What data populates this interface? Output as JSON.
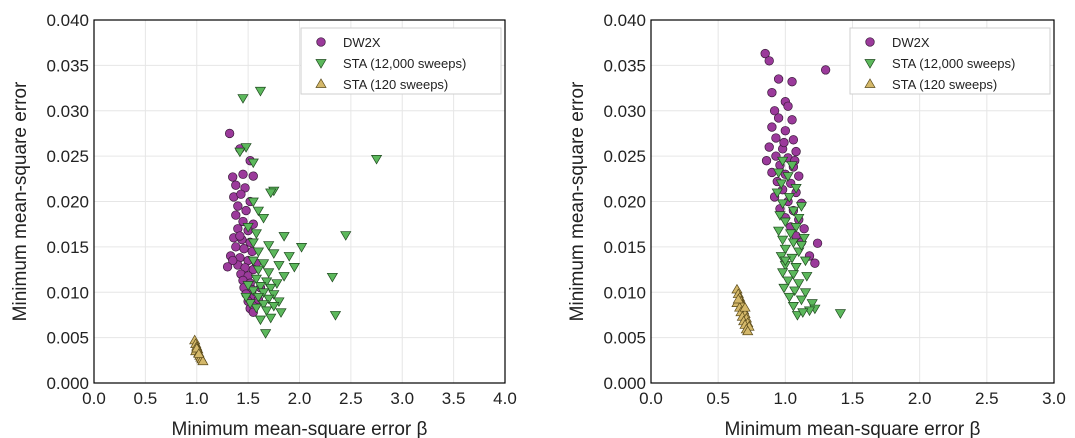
{
  "colors": {
    "dw2x": "#9b3a9b",
    "sta12000": "#5cb85c",
    "sta120": "#d4b86a"
  },
  "chart_data": [
    {
      "type": "scatter",
      "xlabel": "Minimum mean-square error β",
      "ylabel": "Minimum mean-square error",
      "xlim": [
        0,
        4
      ],
      "ylim": [
        0,
        0.04
      ],
      "xticks": [
        "0.0",
        "0.5",
        "1.0",
        "1.5",
        "2.0",
        "2.5",
        "3.0",
        "3.5",
        "4.0"
      ],
      "yticks": [
        "0.000",
        "0.005",
        "0.010",
        "0.015",
        "0.020",
        "0.025",
        "0.030",
        "0.035",
        "0.040"
      ],
      "grid": true,
      "legend_position": "top-right",
      "series": [
        {
          "name": "DW2X",
          "marker": "circle",
          "points": [
            [
              1.32,
              0.0275
            ],
            [
              1.42,
              0.0258
            ],
            [
              1.52,
              0.0245
            ],
            [
              1.35,
              0.0227
            ],
            [
              1.45,
              0.023
            ],
            [
              1.55,
              0.0228
            ],
            [
              1.38,
              0.0218
            ],
            [
              1.47,
              0.0215
            ],
            [
              1.36,
              0.0205
            ],
            [
              1.43,
              0.0208
            ],
            [
              1.52,
              0.02
            ],
            [
              1.4,
              0.0195
            ],
            [
              1.48,
              0.019
            ],
            [
              1.38,
              0.0185
            ],
            [
              1.45,
              0.0178
            ],
            [
              1.55,
              0.0175
            ],
            [
              1.4,
              0.017
            ],
            [
              1.5,
              0.0168
            ],
            [
              1.36,
              0.016
            ],
            [
              1.44,
              0.0158
            ],
            [
              1.52,
              0.0155
            ],
            [
              1.38,
              0.015
            ],
            [
              1.46,
              0.0148
            ],
            [
              1.54,
              0.0145
            ],
            [
              1.33,
              0.014
            ],
            [
              1.42,
              0.0138
            ],
            [
              1.5,
              0.0135
            ],
            [
              1.58,
              0.0132
            ],
            [
              1.4,
              0.013
            ],
            [
              1.47,
              0.0127
            ],
            [
              1.55,
              0.0125
            ],
            [
              1.43,
              0.012
            ],
            [
              1.5,
              0.0118
            ],
            [
              1.45,
              0.0113
            ],
            [
              1.52,
              0.011
            ],
            [
              1.46,
              0.0105
            ],
            [
              1.54,
              0.0103
            ],
            [
              1.48,
              0.0098
            ],
            [
              1.56,
              0.0095
            ],
            [
              1.5,
              0.009
            ],
            [
              1.58,
              0.0087
            ],
            [
              1.52,
              0.0082
            ],
            [
              1.55,
              0.0078
            ],
            [
              1.6,
              0.0092
            ],
            [
              1.62,
              0.0105
            ],
            [
              1.35,
              0.0135
            ],
            [
              1.3,
              0.0128
            ],
            [
              1.42,
              0.0162
            ]
          ]
        },
        {
          "name": "STA (12,000 sweeps)",
          "marker": "triangle-down",
          "points": [
            [
              1.62,
              0.0322
            ],
            [
              1.45,
              0.0314
            ],
            [
              1.48,
              0.026
            ],
            [
              1.42,
              0.0255
            ],
            [
              1.55,
              0.0243
            ],
            [
              2.75,
              0.0247
            ],
            [
              1.75,
              0.0212
            ],
            [
              1.72,
              0.021
            ],
            [
              1.55,
              0.02
            ],
            [
              1.6,
              0.019
            ],
            [
              1.65,
              0.0182
            ],
            [
              1.5,
              0.0172
            ],
            [
              1.58,
              0.0165
            ],
            [
              1.85,
              0.0162
            ],
            [
              2.45,
              0.0163
            ],
            [
              1.55,
              0.0155
            ],
            [
              1.7,
              0.0152
            ],
            [
              2.02,
              0.015
            ],
            [
              1.6,
              0.0145
            ],
            [
              1.75,
              0.0143
            ],
            [
              1.9,
              0.014
            ],
            [
              1.55,
              0.0135
            ],
            [
              1.65,
              0.0132
            ],
            [
              1.8,
              0.013
            ],
            [
              1.95,
              0.0128
            ],
            [
              1.6,
              0.0125
            ],
            [
              1.7,
              0.0122
            ],
            [
              1.85,
              0.0118
            ],
            [
              2.32,
              0.0117
            ],
            [
              1.58,
              0.0115
            ],
            [
              1.68,
              0.0112
            ],
            [
              1.78,
              0.011
            ],
            [
              1.62,
              0.0107
            ],
            [
              1.72,
              0.0105
            ],
            [
              1.55,
              0.0102
            ],
            [
              1.65,
              0.01
            ],
            [
              1.75,
              0.0098
            ],
            [
              1.6,
              0.0095
            ],
            [
              1.7,
              0.0093
            ],
            [
              1.8,
              0.009
            ],
            [
              1.65,
              0.0087
            ],
            [
              1.75,
              0.0085
            ],
            [
              1.58,
              0.0083
            ],
            [
              1.68,
              0.008
            ],
            [
              1.82,
              0.0078
            ],
            [
              2.35,
              0.0075
            ],
            [
              1.72,
              0.0072
            ],
            [
              1.62,
              0.007
            ],
            [
              1.67,
              0.0055
            ],
            [
              1.52,
              0.0088
            ],
            [
              1.48,
              0.0095
            ],
            [
              1.5,
              0.0108
            ]
          ]
        },
        {
          "name": "STA (120 sweeps)",
          "marker": "triangle-up",
          "points": [
            [
              0.98,
              0.0047
            ],
            [
              0.99,
              0.0043
            ],
            [
              1.0,
              0.004
            ],
            [
              1.01,
              0.0037
            ],
            [
              0.99,
              0.0035
            ],
            [
              1.02,
              0.0033
            ],
            [
              1.03,
              0.003
            ],
            [
              1.04,
              0.0028
            ],
            [
              1.05,
              0.0026
            ],
            [
              1.06,
              0.0024
            ],
            [
              1.0,
              0.0038
            ],
            [
              1.02,
              0.0032
            ]
          ]
        }
      ]
    },
    {
      "type": "scatter",
      "xlabel": "Minimum mean-square error β",
      "ylabel": "Minimum mean-square error",
      "xlim": [
        0,
        3
      ],
      "ylim": [
        0,
        0.04
      ],
      "xticks": [
        "0.0",
        "0.5",
        "1.0",
        "1.5",
        "2.0",
        "2.5",
        "3.0"
      ],
      "yticks": [
        "0.000",
        "0.005",
        "0.010",
        "0.015",
        "0.020",
        "0.025",
        "0.030",
        "0.035",
        "0.040"
      ],
      "grid": true,
      "legend_position": "top-right",
      "series": [
        {
          "name": "DW2X",
          "marker": "circle",
          "points": [
            [
              0.85,
              0.0363
            ],
            [
              0.88,
              0.0355
            ],
            [
              1.3,
              0.0345
            ],
            [
              0.95,
              0.0335
            ],
            [
              1.05,
              0.0332
            ],
            [
              0.9,
              0.032
            ],
            [
              1.0,
              0.031
            ],
            [
              0.92,
              0.03
            ],
            [
              1.02,
              0.0305
            ],
            [
              0.95,
              0.0292
            ],
            [
              1.05,
              0.029
            ],
            [
              0.9,
              0.0282
            ],
            [
              1.0,
              0.0278
            ],
            [
              0.93,
              0.027
            ],
            [
              1.06,
              0.0268
            ],
            [
              0.88,
              0.026
            ],
            [
              0.98,
              0.0258
            ],
            [
              1.08,
              0.0255
            ],
            [
              0.93,
              0.025
            ],
            [
              1.02,
              0.0248
            ],
            [
              0.86,
              0.0245
            ],
            [
              0.96,
              0.024
            ],
            [
              1.06,
              0.0238
            ],
            [
              0.9,
              0.0232
            ],
            [
              1.0,
              0.023
            ],
            [
              1.1,
              0.0228
            ],
            [
              0.94,
              0.0222
            ],
            [
              1.04,
              0.022
            ],
            [
              0.98,
              0.0213
            ],
            [
              1.08,
              0.021
            ],
            [
              0.92,
              0.0205
            ],
            [
              1.02,
              0.02
            ],
            [
              1.12,
              0.0198
            ],
            [
              0.96,
              0.0192
            ],
            [
              1.06,
              0.019
            ],
            [
              1.0,
              0.0182
            ],
            [
              1.1,
              0.018
            ],
            [
              1.04,
              0.0172
            ],
            [
              1.14,
              0.017
            ],
            [
              1.08,
              0.0162
            ],
            [
              1.24,
              0.0154
            ],
            [
              1.18,
              0.014
            ],
            [
              1.22,
              0.0132
            ],
            [
              1.12,
              0.0155
            ],
            [
              0.99,
              0.0265
            ],
            [
              1.07,
              0.0245
            ]
          ]
        },
        {
          "name": "STA (12,000 sweeps)",
          "marker": "triangle-down",
          "points": [
            [
              0.98,
              0.0245
            ],
            [
              1.05,
              0.024
            ],
            [
              0.95,
              0.0232
            ],
            [
              1.02,
              0.0228
            ],
            [
              0.97,
              0.022
            ],
            [
              1.08,
              0.0215
            ],
            [
              0.94,
              0.021
            ],
            [
              1.03,
              0.0205
            ],
            [
              1.12,
              0.0195
            ],
            [
              0.98,
              0.0198
            ],
            [
              1.06,
              0.019
            ],
            [
              0.96,
              0.0185
            ],
            [
              1.1,
              0.0182
            ],
            [
              1.0,
              0.0178
            ],
            [
              1.08,
              0.0172
            ],
            [
              0.95,
              0.0168
            ],
            [
              1.04,
              0.0165
            ],
            [
              1.14,
              0.016
            ],
            [
              0.98,
              0.0158
            ],
            [
              1.06,
              0.0155
            ],
            [
              1.0,
              0.0148
            ],
            [
              1.1,
              0.0145
            ],
            [
              0.97,
              0.014
            ],
            [
              1.05,
              0.0138
            ],
            [
              1.15,
              0.0135
            ],
            [
              1.0,
              0.013
            ],
            [
              1.08,
              0.0128
            ],
            [
              0.98,
              0.0122
            ],
            [
              1.06,
              0.012
            ],
            [
              1.16,
              0.0118
            ],
            [
              1.02,
              0.0113
            ],
            [
              1.1,
              0.011
            ],
            [
              0.99,
              0.0105
            ],
            [
              1.07,
              0.0102
            ],
            [
              1.15,
              0.01
            ],
            [
              1.03,
              0.0095
            ],
            [
              1.12,
              0.0092
            ],
            [
              1.2,
              0.0088
            ],
            [
              1.06,
              0.0085
            ],
            [
              1.22,
              0.0082
            ],
            [
              1.41,
              0.0077
            ],
            [
              1.09,
              0.0075
            ],
            [
              1.18,
              0.008
            ],
            [
              1.13,
              0.0078
            ],
            [
              1.0,
              0.0135
            ],
            [
              1.12,
              0.0152
            ]
          ]
        },
        {
          "name": "STA (120 sweeps)",
          "marker": "triangle-up",
          "points": [
            [
              0.64,
              0.0103
            ],
            [
              0.65,
              0.0098
            ],
            [
              0.66,
              0.0094
            ],
            [
              0.67,
              0.009
            ],
            [
              0.64,
              0.0088
            ],
            [
              0.68,
              0.0086
            ],
            [
              0.66,
              0.0083
            ],
            [
              0.69,
              0.008
            ],
            [
              0.67,
              0.0078
            ],
            [
              0.7,
              0.0076
            ],
            [
              0.68,
              0.0073
            ],
            [
              0.71,
              0.0071
            ],
            [
              0.69,
              0.0068
            ],
            [
              0.72,
              0.0066
            ],
            [
              0.7,
              0.0064
            ],
            [
              0.73,
              0.0062
            ],
            [
              0.71,
              0.0059
            ],
            [
              0.72,
              0.0057
            ],
            [
              0.65,
              0.0092
            ],
            [
              0.7,
              0.0083
            ]
          ]
        }
      ]
    }
  ]
}
